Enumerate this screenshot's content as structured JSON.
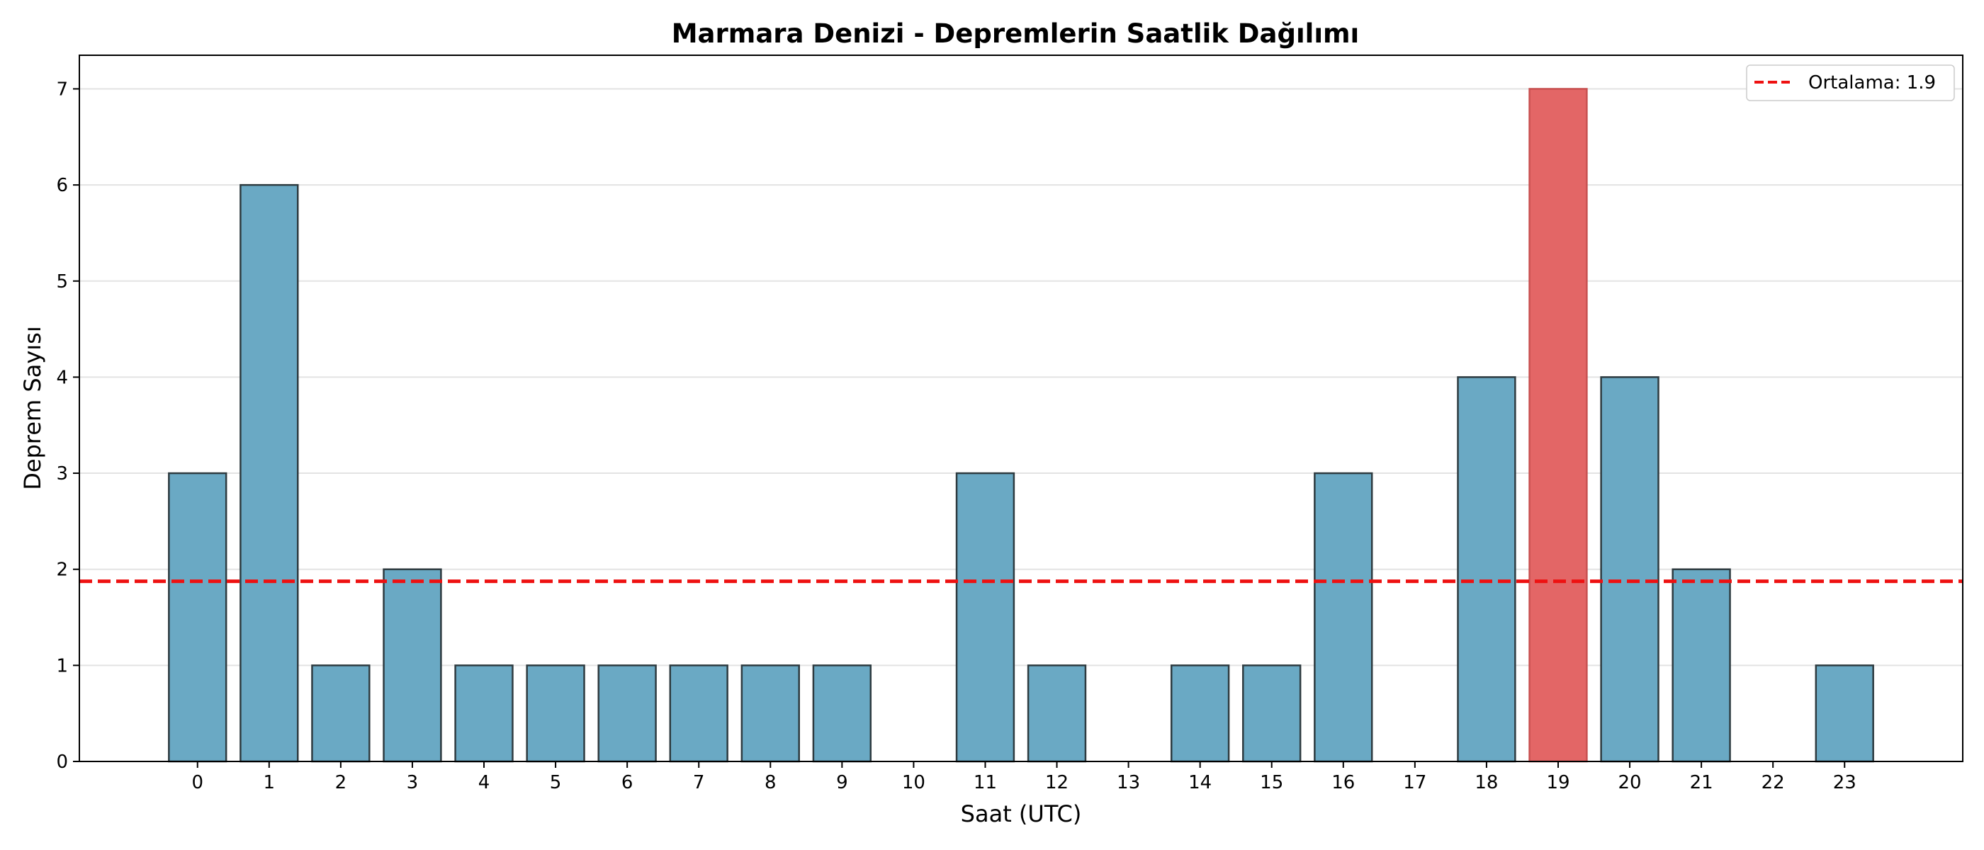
{
  "chart_data": {
    "type": "bar",
    "title": "Marmara Denizi - Depremlerin Saatlik Dağılımı",
    "xlabel": "Saat (UTC)",
    "ylabel": "Deprem Sayısı",
    "categories": [
      0,
      1,
      2,
      3,
      4,
      5,
      6,
      7,
      8,
      9,
      10,
      11,
      12,
      13,
      14,
      15,
      16,
      17,
      18,
      19,
      20,
      21,
      22,
      23
    ],
    "values": [
      3,
      6,
      1,
      2,
      1,
      1,
      1,
      1,
      1,
      1,
      0,
      3,
      1,
      0,
      1,
      1,
      3,
      0,
      4,
      7,
      4,
      2,
      0,
      1
    ],
    "highlight_index": 19,
    "bar_color": "#6aa9c4",
    "highlight_color": "#e36666",
    "edge_color": "#2e3b40",
    "ylim": [
      0,
      7.35
    ],
    "yticks": [
      0,
      1,
      2,
      3,
      4,
      5,
      6,
      7
    ],
    "xlim": [
      -1.65,
      24.65
    ],
    "grid": "y",
    "mean_line": {
      "value": 1.875,
      "color": "#ee1111",
      "style": "dashed"
    },
    "legend": {
      "position": "top-right",
      "entries": [
        "Ortalama: 1.9"
      ]
    }
  }
}
